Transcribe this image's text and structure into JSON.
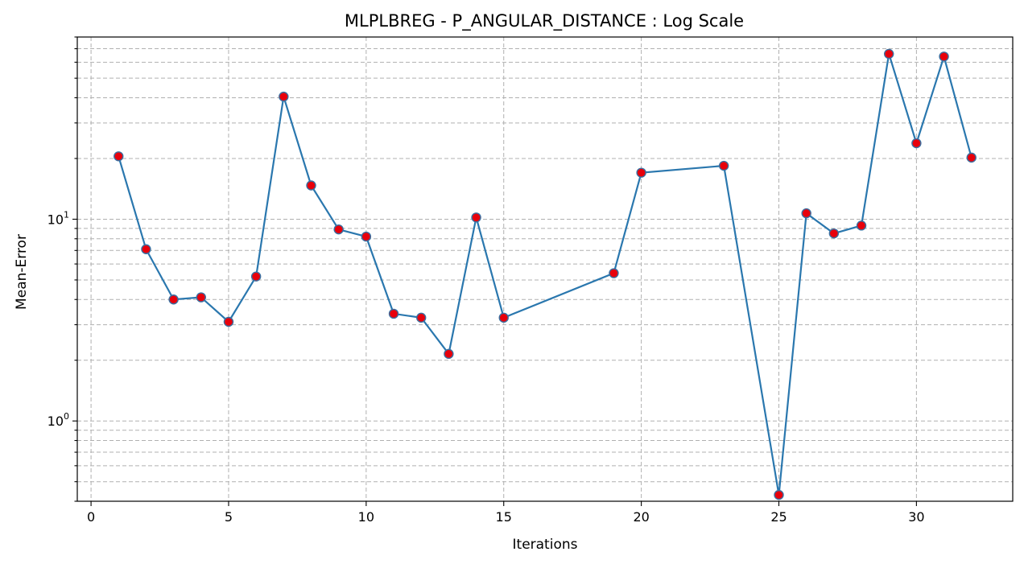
{
  "chart_data": {
    "type": "line",
    "title": "MLPLBREG - P_ANGULAR_DISTANCE : Log Scale",
    "xlabel": "Iterations",
    "ylabel": "Mean-Error",
    "xlim": [
      -0.5,
      33.5
    ],
    "ylim": [
      0.4,
      80
    ],
    "yscale": "log",
    "grid": true,
    "x_ticks": [
      0,
      5,
      10,
      15,
      20,
      25,
      30
    ],
    "y_major_ticks": [
      {
        "value": 1,
        "label_base": "10",
        "label_exp": "0"
      },
      {
        "value": 10,
        "label_base": "10",
        "label_exp": "1"
      }
    ],
    "y_minor_ticks": [
      0.4,
      0.5,
      0.6,
      0.7,
      0.8,
      0.9,
      2,
      3,
      4,
      5,
      6,
      7,
      8,
      9,
      20,
      30,
      40,
      50,
      60,
      70,
      80
    ],
    "series": [
      {
        "x": [
          1,
          2,
          3,
          4,
          5,
          6,
          7,
          8,
          9,
          10,
          11,
          12,
          13,
          14,
          15,
          19,
          20,
          23,
          25,
          26,
          27,
          28,
          29,
          30,
          31,
          32
        ],
        "y": [
          20.5,
          7.1,
          4.0,
          4.1,
          3.1,
          5.2,
          40.5,
          14.7,
          8.9,
          8.2,
          3.4,
          3.25,
          2.15,
          10.2,
          3.25,
          5.4,
          17.0,
          18.4,
          0.43,
          10.7,
          8.5,
          9.3,
          66.0,
          23.8,
          64.0,
          20.2
        ]
      }
    ],
    "colors": {
      "line": "#2a77ae",
      "marker_fill": "#e8000b",
      "marker_edge": "#3a6fa0",
      "grid": "#b0b0b0"
    }
  }
}
